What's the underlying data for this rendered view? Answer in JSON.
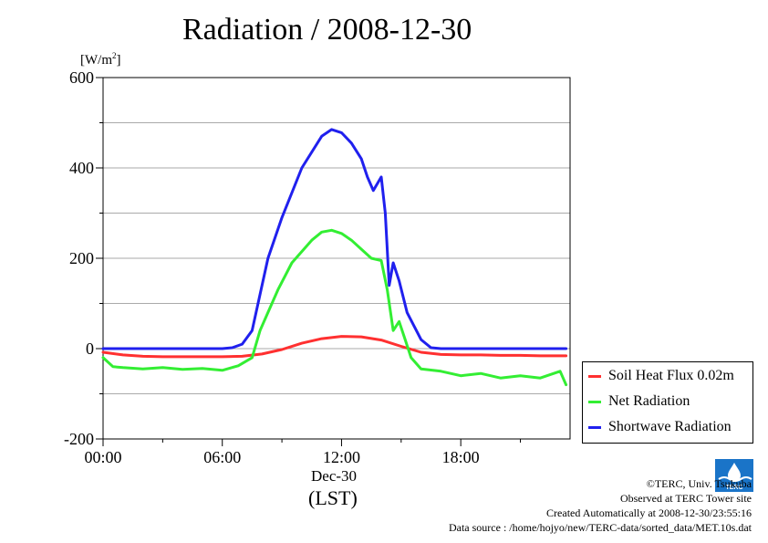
{
  "chart_data": {
    "type": "line",
    "title": "Radiation / 2008-12-30",
    "ylabel_text": "[W/m",
    "ylabel_sup": "2",
    "ylabel_close": "]",
    "xlabel_date": "Dec-30",
    "xlabel_unit": "(LST)",
    "xlim": [
      0,
      23.5
    ],
    "ylim": [
      -200,
      600
    ],
    "x_ticks": [
      0,
      6,
      12,
      18
    ],
    "x_tick_labels": [
      "00:00",
      "06:00",
      "12:00",
      "18:00"
    ],
    "y_ticks": [
      -200,
      0,
      200,
      400,
      600
    ],
    "y_tick_labels": [
      "-200",
      "0",
      "200",
      "400",
      "600"
    ],
    "grid": true,
    "legend_position": "lower-right outside",
    "series": [
      {
        "name": "Soil Heat Flux 0.02m",
        "color": "#ff3030",
        "x": [
          0,
          1,
          2,
          3,
          4,
          5,
          6,
          7,
          8,
          9,
          10,
          11,
          12,
          13,
          14,
          15,
          16,
          17,
          18,
          19,
          20,
          21,
          22,
          23.3
        ],
        "y": [
          -8,
          -14,
          -17,
          -18,
          -18,
          -18,
          -18,
          -17,
          -12,
          -2,
          12,
          22,
          27,
          26,
          19,
          5,
          -8,
          -13,
          -14,
          -14,
          -15,
          -15,
          -16,
          -16
        ]
      },
      {
        "name": "Net Radiation",
        "color": "#33ee33",
        "x": [
          0,
          0.5,
          1,
          2,
          3,
          4,
          5,
          6,
          6.8,
          7.5,
          7.9,
          8.3,
          8.8,
          9.5,
          10.5,
          11,
          11.5,
          12,
          12.5,
          13,
          13.5,
          14,
          14.3,
          14.6,
          14.9,
          15.2,
          15.5,
          16,
          17,
          18,
          19,
          20,
          21,
          22,
          23,
          23.3
        ],
        "y": [
          -20,
          -40,
          -42,
          -45,
          -42,
          -46,
          -44,
          -48,
          -38,
          -20,
          40,
          80,
          130,
          190,
          240,
          258,
          262,
          255,
          240,
          220,
          200,
          195,
          130,
          40,
          60,
          20,
          -20,
          -45,
          -50,
          -60,
          -55,
          -65,
          -60,
          -65,
          -50,
          -80
        ]
      },
      {
        "name": "Shortwave Radiation",
        "color": "#2020ee",
        "x": [
          0,
          1,
          2,
          3,
          4,
          5,
          6,
          6.5,
          7,
          7.5,
          7.9,
          8.3,
          9,
          10,
          11,
          11.5,
          12,
          12.5,
          13,
          13.3,
          13.6,
          14,
          14.2,
          14.4,
          14.6,
          14.9,
          15.3,
          16,
          16.5,
          17,
          18,
          19,
          20,
          21,
          22,
          23,
          23.3
        ],
        "y": [
          0,
          0,
          0,
          0,
          0,
          0,
          0,
          2,
          10,
          40,
          120,
          200,
          290,
          400,
          470,
          485,
          478,
          455,
          420,
          380,
          350,
          380,
          300,
          140,
          190,
          150,
          80,
          20,
          2,
          0,
          0,
          0,
          0,
          0,
          0,
          0,
          0
        ]
      }
    ]
  },
  "footer": {
    "copyright": "©TERC, Univ. Tsukuba",
    "observed": "Observed at TERC Tower site",
    "created": "Created Automatically at 2008-12-30/23:55:16",
    "source": "Data source : /home/hojyo/new/TERC-data/sorted_data/MET.10s.dat"
  },
  "logo_text": "TERC"
}
